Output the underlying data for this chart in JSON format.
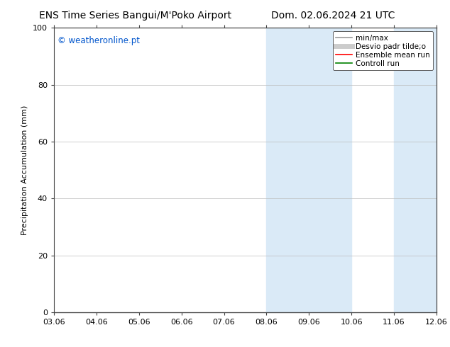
{
  "title_left": "ENS Time Series Bangui/M'Poko Airport",
  "title_right": "Dom. 02.06.2024 21 UTC",
  "ylabel": "Precipitation Accumulation (mm)",
  "watermark": "© weatheronline.pt",
  "watermark_color": "#0055cc",
  "ylim": [
    0,
    100
  ],
  "xtick_labels": [
    "03.06",
    "04.06",
    "05.06",
    "06.06",
    "07.06",
    "08.06",
    "09.06",
    "10.06",
    "11.06",
    "12.06"
  ],
  "xtick_positions": [
    0,
    1,
    2,
    3,
    4,
    5,
    6,
    7,
    8,
    9
  ],
  "ytick_labels": [
    "0",
    "20",
    "40",
    "60",
    "80",
    "100"
  ],
  "ytick_positions": [
    0,
    20,
    40,
    60,
    80,
    100
  ],
  "shaded_regions": [
    {
      "x_start": 5.0,
      "x_end": 7.0,
      "color": "#daeaf7"
    },
    {
      "x_start": 8.0,
      "x_end": 9.0,
      "color": "#daeaf7"
    }
  ],
  "legend_entries": [
    {
      "label": "min/max",
      "color": "#999999",
      "linewidth": 1.2,
      "linestyle": "-"
    },
    {
      "label": "Desvio padr tilde;o",
      "color": "#cccccc",
      "linewidth": 5,
      "linestyle": "-"
    },
    {
      "label": "Ensemble mean run",
      "color": "red",
      "linewidth": 1.2,
      "linestyle": "-"
    },
    {
      "label": "Controll run",
      "color": "green",
      "linewidth": 1.2,
      "linestyle": "-"
    }
  ],
  "bg_color": "#ffffff",
  "grid_color": "#bbbbbb",
  "title_fontsize": 10,
  "label_fontsize": 8,
  "tick_fontsize": 8,
  "legend_fontsize": 7.5
}
